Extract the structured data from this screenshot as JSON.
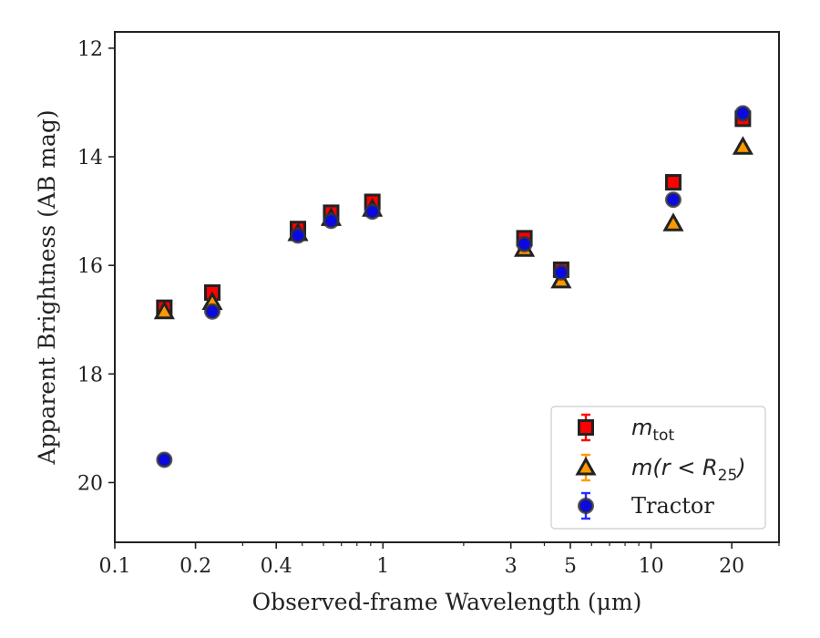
{
  "chart_data": {
    "type": "scatter",
    "xlabel": "Observed-frame Wavelength (μm)",
    "ylabel": "Apparent Brightness (AB mag)",
    "x_scale": "log",
    "xlim": [
      0.1,
      30
    ],
    "ylim": [
      21.1,
      11.7
    ],
    "y_inverted": true,
    "x_ticks": [
      {
        "value": 0.1,
        "label": "0.1"
      },
      {
        "value": 0.2,
        "label": "0.2"
      },
      {
        "value": 0.4,
        "label": "0.4"
      },
      {
        "value": 1,
        "label": "1"
      },
      {
        "value": 3,
        "label": "3"
      },
      {
        "value": 5,
        "label": "5"
      },
      {
        "value": 10,
        "label": "10"
      },
      {
        "value": 20,
        "label": "20"
      }
    ],
    "x_minor_ticks": [
      0.3,
      0.5,
      0.6,
      0.7,
      0.8,
      0.9,
      2,
      4,
      6,
      7,
      8,
      9,
      30
    ],
    "y_ticks": [
      {
        "value": 12,
        "label": "12"
      },
      {
        "value": 14,
        "label": "14"
      },
      {
        "value": 16,
        "label": "16"
      },
      {
        "value": 18,
        "label": "18"
      },
      {
        "value": 20,
        "label": "20"
      }
    ],
    "grid": false,
    "legend": {
      "position": "bottom-right",
      "entries": [
        {
          "main": "m",
          "sub": "tot",
          "tail": ""
        },
        {
          "main": "m(r < R",
          "sub": "25",
          "tail": ")"
        },
        {
          "main": "Tractor",
          "sub": "",
          "tail": ""
        }
      ]
    },
    "series": [
      {
        "marker": "square",
        "color": "#ff0000",
        "edge": "#222222",
        "errcolor": "#ff0000",
        "points": [
          {
            "x": 0.153,
            "y": 16.78,
            "err": 0.09
          },
          {
            "x": 0.231,
            "y": 16.5,
            "err": 0.08
          },
          {
            "x": 0.482,
            "y": 15.33,
            "err": 0.06
          },
          {
            "x": 0.641,
            "y": 15.03,
            "err": 0.06
          },
          {
            "x": 0.913,
            "y": 14.83,
            "err": 0.06
          },
          {
            "x": 3.37,
            "y": 15.5,
            "err": 0.07
          },
          {
            "x": 4.62,
            "y": 16.08,
            "err": 0.07
          },
          {
            "x": 12.1,
            "y": 14.47,
            "err": 0.06
          },
          {
            "x": 22.0,
            "y": 13.3,
            "err": 0.1
          }
        ]
      },
      {
        "marker": "triangle",
        "color": "#ff9900",
        "edge": "#222222",
        "errcolor": "#ff9900",
        "points": [
          {
            "x": 0.153,
            "y": 16.85,
            "err": 0.05
          },
          {
            "x": 0.231,
            "y": 16.68,
            "err": 0.05
          },
          {
            "x": 0.482,
            "y": 15.41,
            "err": 0.04
          },
          {
            "x": 0.641,
            "y": 15.13,
            "err": 0.04
          },
          {
            "x": 0.913,
            "y": 14.96,
            "err": 0.04
          },
          {
            "x": 3.37,
            "y": 15.7,
            "err": 0.04
          },
          {
            "x": 4.62,
            "y": 16.28,
            "err": 0.05
          },
          {
            "x": 12.1,
            "y": 15.23,
            "err": 0.05
          },
          {
            "x": 22.0,
            "y": 13.82,
            "err": 0.05
          }
        ]
      },
      {
        "marker": "circle",
        "color": "#0a0ae0",
        "edge": "#333333",
        "errcolor": "#2a2aff",
        "points": [
          {
            "x": 0.153,
            "y": 19.58,
            "err": 0.05
          },
          {
            "x": 0.231,
            "y": 16.85,
            "err": 0.05
          },
          {
            "x": 0.482,
            "y": 15.45,
            "err": 0.04
          },
          {
            "x": 0.641,
            "y": 15.18,
            "err": 0.04
          },
          {
            "x": 0.913,
            "y": 15.01,
            "err": 0.04
          },
          {
            "x": 3.37,
            "y": 15.61,
            "err": 0.04
          },
          {
            "x": 4.62,
            "y": 16.13,
            "err": 0.05
          },
          {
            "x": 12.1,
            "y": 14.79,
            "err": 0.05
          },
          {
            "x": 22.0,
            "y": 13.2,
            "err": 0.07
          }
        ]
      }
    ]
  }
}
